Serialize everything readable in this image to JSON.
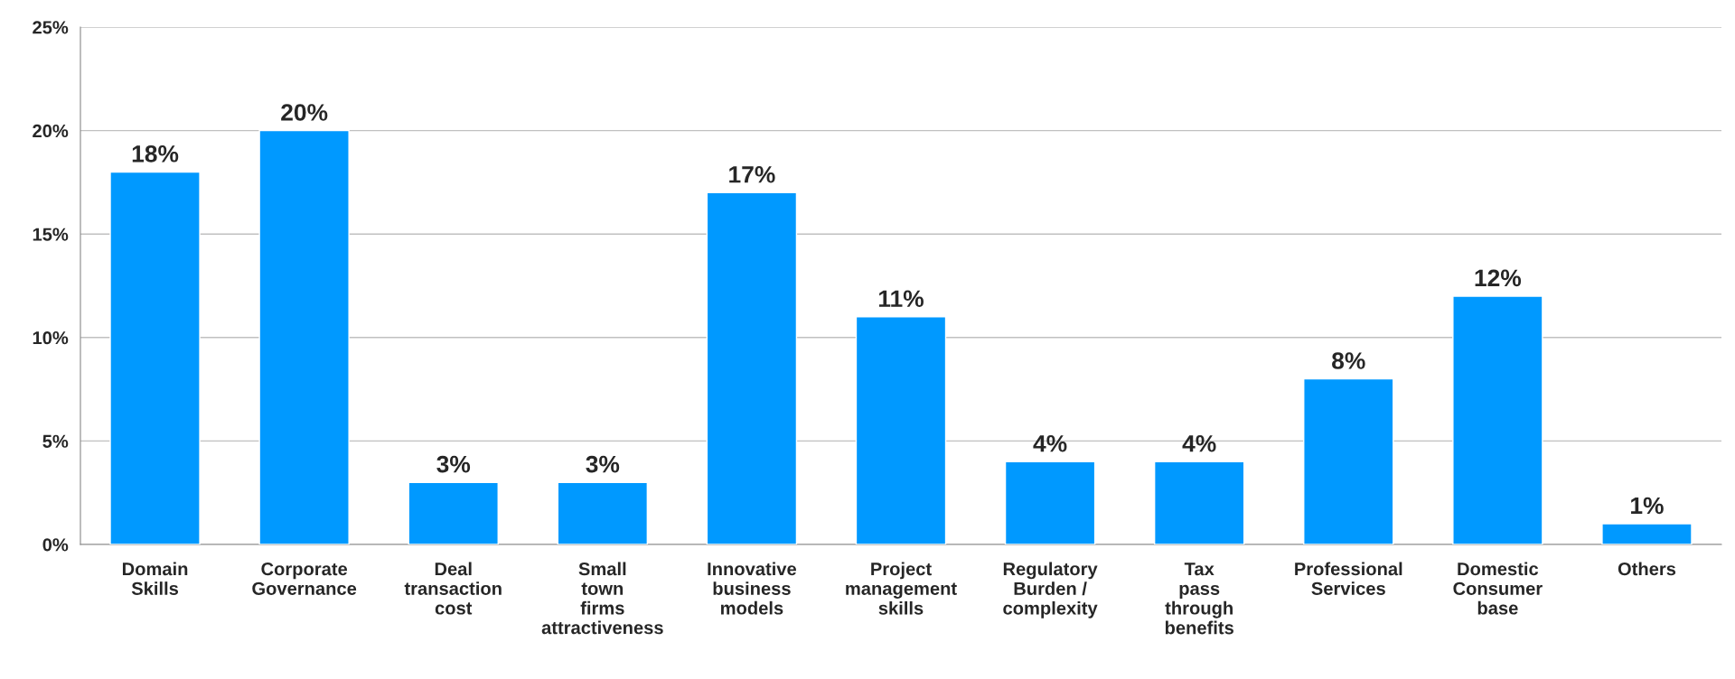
{
  "chart_data": {
    "type": "bar",
    "categories": [
      "Domain\nSkills",
      "Corporate\nGovernance",
      "Deal\ntransaction\ncost",
      "Small\ntown\nfirms\nattractiveness",
      "Innovative\nbusiness\nmodels",
      "Project\nmanagement\nskills",
      "Regulatory\nBurden /\ncomplexity",
      "Tax\npass\nthrough\nbenefits",
      "Professional\nServices",
      "Domestic\nConsumer\nbase",
      "Others"
    ],
    "values": [
      18,
      20,
      3,
      3,
      17,
      11,
      4,
      4,
      8,
      12,
      1
    ],
    "value_labels": [
      "18%",
      "20%",
      "3%",
      "3%",
      "17%",
      "11%",
      "4%",
      "4%",
      "8%",
      "12%",
      "1%"
    ],
    "color": "#0099ff",
    "ylim": [
      0,
      25
    ],
    "yticks": [
      {
        "value": 0,
        "label": "0%"
      },
      {
        "value": 5,
        "label": "5%"
      },
      {
        "value": 10,
        "label": "10%"
      },
      {
        "value": 15,
        "label": "15%"
      },
      {
        "value": 20,
        "label": "20%"
      },
      {
        "value": 25,
        "label": "25%"
      }
    ],
    "grid": "y"
  }
}
